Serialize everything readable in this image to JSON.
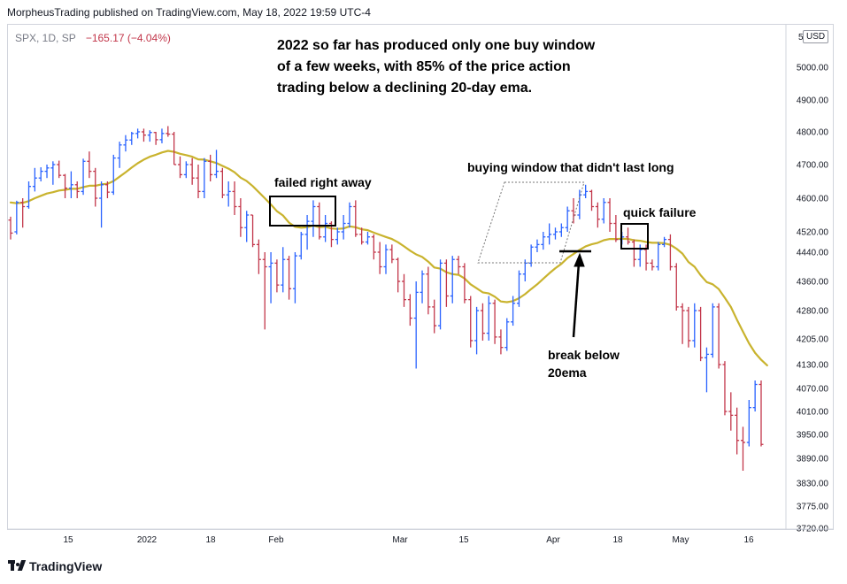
{
  "header": {
    "published_by": "MorpheusTrading published on TradingView.com, May 18, 2022 19:59 UTC-4"
  },
  "symbol": {
    "name": "SPX, 1D, SP",
    "change": "−165.17 (−4.04%)"
  },
  "currency_badge": "USD",
  "footer": {
    "brand": "TradingView"
  },
  "colors": {
    "up_bar": "#2962ff",
    "down_bar": "#c2364a",
    "ema_line": "#c9b32e",
    "annotation_box": "#000000"
  },
  "chart_data": {
    "type": "line",
    "title": "",
    "xlabel": "",
    "ylabel": "",
    "ylim": [
      3720,
      5050
    ],
    "x_tick_labels": [
      "15",
      "2022",
      "18",
      "Feb",
      "Mar",
      "15",
      "Apr",
      "18",
      "May",
      "16"
    ],
    "y_tick_labels": [
      "5000.00",
      "4900.00",
      "4800.00",
      "4700.00",
      "4600.00",
      "4520.00",
      "4440.00",
      "4360.00",
      "4280.00",
      "4205.00",
      "4130.00",
      "4070.00",
      "4010.00",
      "3950.00",
      "3890.00",
      "3830.00",
      "3775.00",
      "3720.00"
    ],
    "series": [
      {
        "type": "ohlc",
        "bars": [
          {
            "o": 4548,
            "h": 4556,
            "l": 4490,
            "c": 4515
          },
          {
            "o": 4520,
            "h": 4594,
            "l": 4510,
            "c": 4590
          },
          {
            "o": 4590,
            "h": 4600,
            "l": 4530,
            "c": 4580
          },
          {
            "o": 4580,
            "h": 4650,
            "l": 4575,
            "c": 4635
          },
          {
            "o": 4635,
            "h": 4690,
            "l": 4620,
            "c": 4660
          },
          {
            "o": 4660,
            "h": 4692,
            "l": 4650,
            "c": 4680
          },
          {
            "o": 4680,
            "h": 4700,
            "l": 4660,
            "c": 4690
          },
          {
            "o": 4690,
            "h": 4710,
            "l": 4640,
            "c": 4700
          },
          {
            "o": 4700,
            "h": 4712,
            "l": 4660,
            "c": 4668
          },
          {
            "o": 4668,
            "h": 4672,
            "l": 4600,
            "c": 4630
          },
          {
            "o": 4630,
            "h": 4680,
            "l": 4600,
            "c": 4640
          },
          {
            "o": 4640,
            "h": 4650,
            "l": 4600,
            "c": 4620
          },
          {
            "o": 4620,
            "h": 4718,
            "l": 4610,
            "c": 4710
          },
          {
            "o": 4710,
            "h": 4740,
            "l": 4660,
            "c": 4680
          },
          {
            "o": 4680,
            "h": 4690,
            "l": 4580,
            "c": 4600
          },
          {
            "o": 4600,
            "h": 4650,
            "l": 4530,
            "c": 4640
          },
          {
            "o": 4640,
            "h": 4650,
            "l": 4600,
            "c": 4618
          },
          {
            "o": 4618,
            "h": 4730,
            "l": 4610,
            "c": 4720
          },
          {
            "o": 4720,
            "h": 4770,
            "l": 4690,
            "c": 4760
          },
          {
            "o": 4760,
            "h": 4790,
            "l": 4740,
            "c": 4775
          },
          {
            "o": 4775,
            "h": 4800,
            "l": 4760,
            "c": 4795
          },
          {
            "o": 4795,
            "h": 4810,
            "l": 4780,
            "c": 4800
          },
          {
            "o": 4800,
            "h": 4810,
            "l": 4770,
            "c": 4790
          },
          {
            "o": 4790,
            "h": 4805,
            "l": 4770,
            "c": 4798
          },
          {
            "o": 4798,
            "h": 4800,
            "l": 4760,
            "c": 4776
          },
          {
            "o": 4776,
            "h": 4810,
            "l": 4765,
            "c": 4795
          },
          {
            "o": 4795,
            "h": 4818,
            "l": 4785,
            "c": 4793
          },
          {
            "o": 4793,
            "h": 4800,
            "l": 4700,
            "c": 4700
          },
          {
            "o": 4700,
            "h": 4725,
            "l": 4660,
            "c": 4670
          },
          {
            "o": 4670,
            "h": 4710,
            "l": 4660,
            "c": 4700
          },
          {
            "o": 4700,
            "h": 4720,
            "l": 4640,
            "c": 4660
          },
          {
            "o": 4660,
            "h": 4700,
            "l": 4600,
            "c": 4620
          },
          {
            "o": 4620,
            "h": 4720,
            "l": 4600,
            "c": 4710
          },
          {
            "o": 4710,
            "h": 4730,
            "l": 4650,
            "c": 4670
          },
          {
            "o": 4670,
            "h": 4745,
            "l": 4660,
            "c": 4680
          },
          {
            "o": 4680,
            "h": 4690,
            "l": 4600,
            "c": 4610
          },
          {
            "o": 4610,
            "h": 4650,
            "l": 4580,
            "c": 4620
          },
          {
            "o": 4620,
            "h": 4650,
            "l": 4560,
            "c": 4580
          },
          {
            "o": 4580,
            "h": 4600,
            "l": 4500,
            "c": 4530
          },
          {
            "o": 4530,
            "h": 4570,
            "l": 4480,
            "c": 4560
          },
          {
            "o": 4560,
            "h": 4560,
            "l": 4460,
            "c": 4470
          },
          {
            "o": 4470,
            "h": 4490,
            "l": 4380,
            "c": 4420
          },
          {
            "o": 4420,
            "h": 4440,
            "l": 4230,
            "c": 4400
          },
          {
            "o": 4400,
            "h": 4440,
            "l": 4300,
            "c": 4410
          },
          {
            "o": 4410,
            "h": 4420,
            "l": 4330,
            "c": 4350
          },
          {
            "o": 4350,
            "h": 4460,
            "l": 4330,
            "c": 4420
          },
          {
            "o": 4420,
            "h": 4430,
            "l": 4310,
            "c": 4340
          },
          {
            "o": 4340,
            "h": 4440,
            "l": 4300,
            "c": 4430
          },
          {
            "o": 4430,
            "h": 4520,
            "l": 4420,
            "c": 4510
          },
          {
            "o": 4510,
            "h": 4560,
            "l": 4450,
            "c": 4545
          },
          {
            "o": 4545,
            "h": 4595,
            "l": 4500,
            "c": 4580
          },
          {
            "o": 4580,
            "h": 4590,
            "l": 4490,
            "c": 4500
          },
          {
            "o": 4500,
            "h": 4560,
            "l": 4480,
            "c": 4540
          },
          {
            "o": 4540,
            "h": 4545,
            "l": 4460,
            "c": 4490
          },
          {
            "o": 4490,
            "h": 4530,
            "l": 4470,
            "c": 4520
          },
          {
            "o": 4520,
            "h": 4560,
            "l": 4490,
            "c": 4540
          },
          {
            "o": 4540,
            "h": 4590,
            "l": 4530,
            "c": 4580
          },
          {
            "o": 4580,
            "h": 4595,
            "l": 4500,
            "c": 4510
          },
          {
            "o": 4510,
            "h": 4530,
            "l": 4470,
            "c": 4480
          },
          {
            "o": 4480,
            "h": 4520,
            "l": 4470,
            "c": 4500
          },
          {
            "o": 4500,
            "h": 4510,
            "l": 4420,
            "c": 4440
          },
          {
            "o": 4440,
            "h": 4480,
            "l": 4380,
            "c": 4400
          },
          {
            "o": 4400,
            "h": 4470,
            "l": 4380,
            "c": 4450
          },
          {
            "o": 4450,
            "h": 4470,
            "l": 4410,
            "c": 4420
          },
          {
            "o": 4420,
            "h": 4425,
            "l": 4330,
            "c": 4360
          },
          {
            "o": 4360,
            "h": 4380,
            "l": 4290,
            "c": 4310
          },
          {
            "o": 4310,
            "h": 4325,
            "l": 4240,
            "c": 4260
          },
          {
            "o": 4260,
            "h": 4360,
            "l": 4120,
            "c": 4330
          },
          {
            "o": 4330,
            "h": 4390,
            "l": 4300,
            "c": 4380
          },
          {
            "o": 4380,
            "h": 4400,
            "l": 4270,
            "c": 4290
          },
          {
            "o": 4290,
            "h": 4310,
            "l": 4220,
            "c": 4240
          },
          {
            "o": 4240,
            "h": 4420,
            "l": 4230,
            "c": 4410
          },
          {
            "o": 4410,
            "h": 4420,
            "l": 4290,
            "c": 4320
          },
          {
            "o": 4320,
            "h": 4430,
            "l": 4300,
            "c": 4420
          },
          {
            "o": 4420,
            "h": 4430,
            "l": 4380,
            "c": 4400
          },
          {
            "o": 4400,
            "h": 4410,
            "l": 4300,
            "c": 4310
          },
          {
            "o": 4310,
            "h": 4320,
            "l": 4180,
            "c": 4200
          },
          {
            "o": 4200,
            "h": 4290,
            "l": 4160,
            "c": 4280
          },
          {
            "o": 4280,
            "h": 4300,
            "l": 4200,
            "c": 4220
          },
          {
            "o": 4220,
            "h": 4320,
            "l": 4200,
            "c": 4300
          },
          {
            "o": 4300,
            "h": 4310,
            "l": 4190,
            "c": 4210
          },
          {
            "o": 4210,
            "h": 4230,
            "l": 4160,
            "c": 4180
          },
          {
            "o": 4180,
            "h": 4260,
            "l": 4170,
            "c": 4250
          },
          {
            "o": 4250,
            "h": 4320,
            "l": 4240,
            "c": 4300
          },
          {
            "o": 4300,
            "h": 4390,
            "l": 4290,
            "c": 4380
          },
          {
            "o": 4380,
            "h": 4420,
            "l": 4360,
            "c": 4410
          },
          {
            "o": 4410,
            "h": 4470,
            "l": 4400,
            "c": 4460
          },
          {
            "o": 4460,
            "h": 4490,
            "l": 4440,
            "c": 4470
          },
          {
            "o": 4470,
            "h": 4520,
            "l": 4450,
            "c": 4500
          },
          {
            "o": 4500,
            "h": 4540,
            "l": 4470,
            "c": 4510
          },
          {
            "o": 4510,
            "h": 4530,
            "l": 4490,
            "c": 4520
          },
          {
            "o": 4520,
            "h": 4540,
            "l": 4500,
            "c": 4530
          },
          {
            "o": 4530,
            "h": 4580,
            "l": 4520,
            "c": 4570
          },
          {
            "o": 4570,
            "h": 4600,
            "l": 4540,
            "c": 4560
          },
          {
            "o": 4560,
            "h": 4625,
            "l": 4550,
            "c": 4610
          },
          {
            "o": 4610,
            "h": 4640,
            "l": 4600,
            "c": 4620
          },
          {
            "o": 4620,
            "h": 4625,
            "l": 4570,
            "c": 4580
          },
          {
            "o": 4580,
            "h": 4590,
            "l": 4530,
            "c": 4550
          },
          {
            "o": 4550,
            "h": 4600,
            "l": 4540,
            "c": 4590
          },
          {
            "o": 4590,
            "h": 4600,
            "l": 4520,
            "c": 4540
          },
          {
            "o": 4540,
            "h": 4560,
            "l": 4480,
            "c": 4490
          },
          {
            "o": 4490,
            "h": 4520,
            "l": 4470,
            "c": 4500
          },
          {
            "o": 4500,
            "h": 4530,
            "l": 4470,
            "c": 4480
          },
          {
            "o": 4480,
            "h": 4490,
            "l": 4400,
            "c": 4420
          },
          {
            "o": 4420,
            "h": 4470,
            "l": 4400,
            "c": 4450
          },
          {
            "o": 4450,
            "h": 4470,
            "l": 4390,
            "c": 4410
          },
          {
            "o": 4410,
            "h": 4420,
            "l": 4390,
            "c": 4400
          },
          {
            "o": 4400,
            "h": 4480,
            "l": 4390,
            "c": 4470
          },
          {
            "o": 4470,
            "h": 4500,
            "l": 4460,
            "c": 4490
          },
          {
            "o": 4490,
            "h": 4510,
            "l": 4390,
            "c": 4400
          },
          {
            "o": 4400,
            "h": 4410,
            "l": 4280,
            "c": 4290
          },
          {
            "o": 4290,
            "h": 4300,
            "l": 4190,
            "c": 4280
          },
          {
            "o": 4280,
            "h": 4290,
            "l": 4180,
            "c": 4200
          },
          {
            "o": 4200,
            "h": 4300,
            "l": 4180,
            "c": 4280
          },
          {
            "o": 4280,
            "h": 4290,
            "l": 4140,
            "c": 4150
          },
          {
            "o": 4150,
            "h": 4180,
            "l": 4060,
            "c": 4160
          },
          {
            "o": 4160,
            "h": 4300,
            "l": 4150,
            "c": 4290
          },
          {
            "o": 4290,
            "h": 4300,
            "l": 4120,
            "c": 4130
          },
          {
            "o": 4130,
            "h": 4140,
            "l": 4000,
            "c": 4010
          },
          {
            "o": 4010,
            "h": 4060,
            "l": 3960,
            "c": 4000
          },
          {
            "o": 4000,
            "h": 4020,
            "l": 3900,
            "c": 3935
          },
          {
            "o": 3935,
            "h": 3970,
            "l": 3860,
            "c": 3930
          },
          {
            "o": 3930,
            "h": 4040,
            "l": 3920,
            "c": 4020
          },
          {
            "o": 4020,
            "h": 4090,
            "l": 4010,
            "c": 4080
          },
          {
            "o": 4080,
            "h": 4090,
            "l": 3920,
            "c": 3925
          }
        ]
      },
      {
        "type": "line",
        "values": [
          4590,
          4588,
          4589,
          4593,
          4600,
          4607,
          4614,
          4618,
          4623,
          4625,
          4628,
          4628,
          4633,
          4637,
          4637,
          4641,
          4643,
          4651,
          4664,
          4677,
          4691,
          4704,
          4715,
          4724,
          4730,
          4737,
          4742,
          4739,
          4733,
          4729,
          4724,
          4716,
          4715,
          4710,
          4705,
          4696,
          4688,
          4677,
          4661,
          4651,
          4636,
          4618,
          4600,
          4585,
          4569,
          4559,
          4542,
          4532,
          4530,
          4531,
          4535,
          4531,
          4532,
          4528,
          4527,
          4528,
          4533,
          4531,
          4526,
          4524,
          4517,
          4508,
          4500,
          4492,
          4479,
          4463,
          4446,
          4434,
          4427,
          4414,
          4398,
          4395,
          4385,
          4380,
          4378,
          4368,
          4352,
          4341,
          4330,
          4327,
          4318,
          4305,
          4303,
          4306,
          4314,
          4325,
          4339,
          4352,
          4367,
          4382,
          4396,
          4408,
          4424,
          4435,
          4449,
          4463,
          4471,
          4477,
          4487,
          4492,
          4492,
          4493,
          4492,
          4487,
          4485,
          4480,
          4477,
          4477,
          4475,
          4469,
          4454,
          4436,
          4413,
          4400,
          4377,
          4358,
          4352,
          4339,
          4315,
          4290,
          4256,
          4224,
          4192,
          4164,
          4144,
          4128
        ]
      }
    ],
    "annotations": {
      "note": [
        "2022 so far has produced only one buy window",
        "of a few weeks, with 85% of the price action",
        "trading below a declining 20-day ema."
      ],
      "failed": "failed right away",
      "window": "buying window that didn't last long",
      "quick": "quick failure",
      "break_line1": "break below",
      "break_line2": "20ema"
    }
  }
}
